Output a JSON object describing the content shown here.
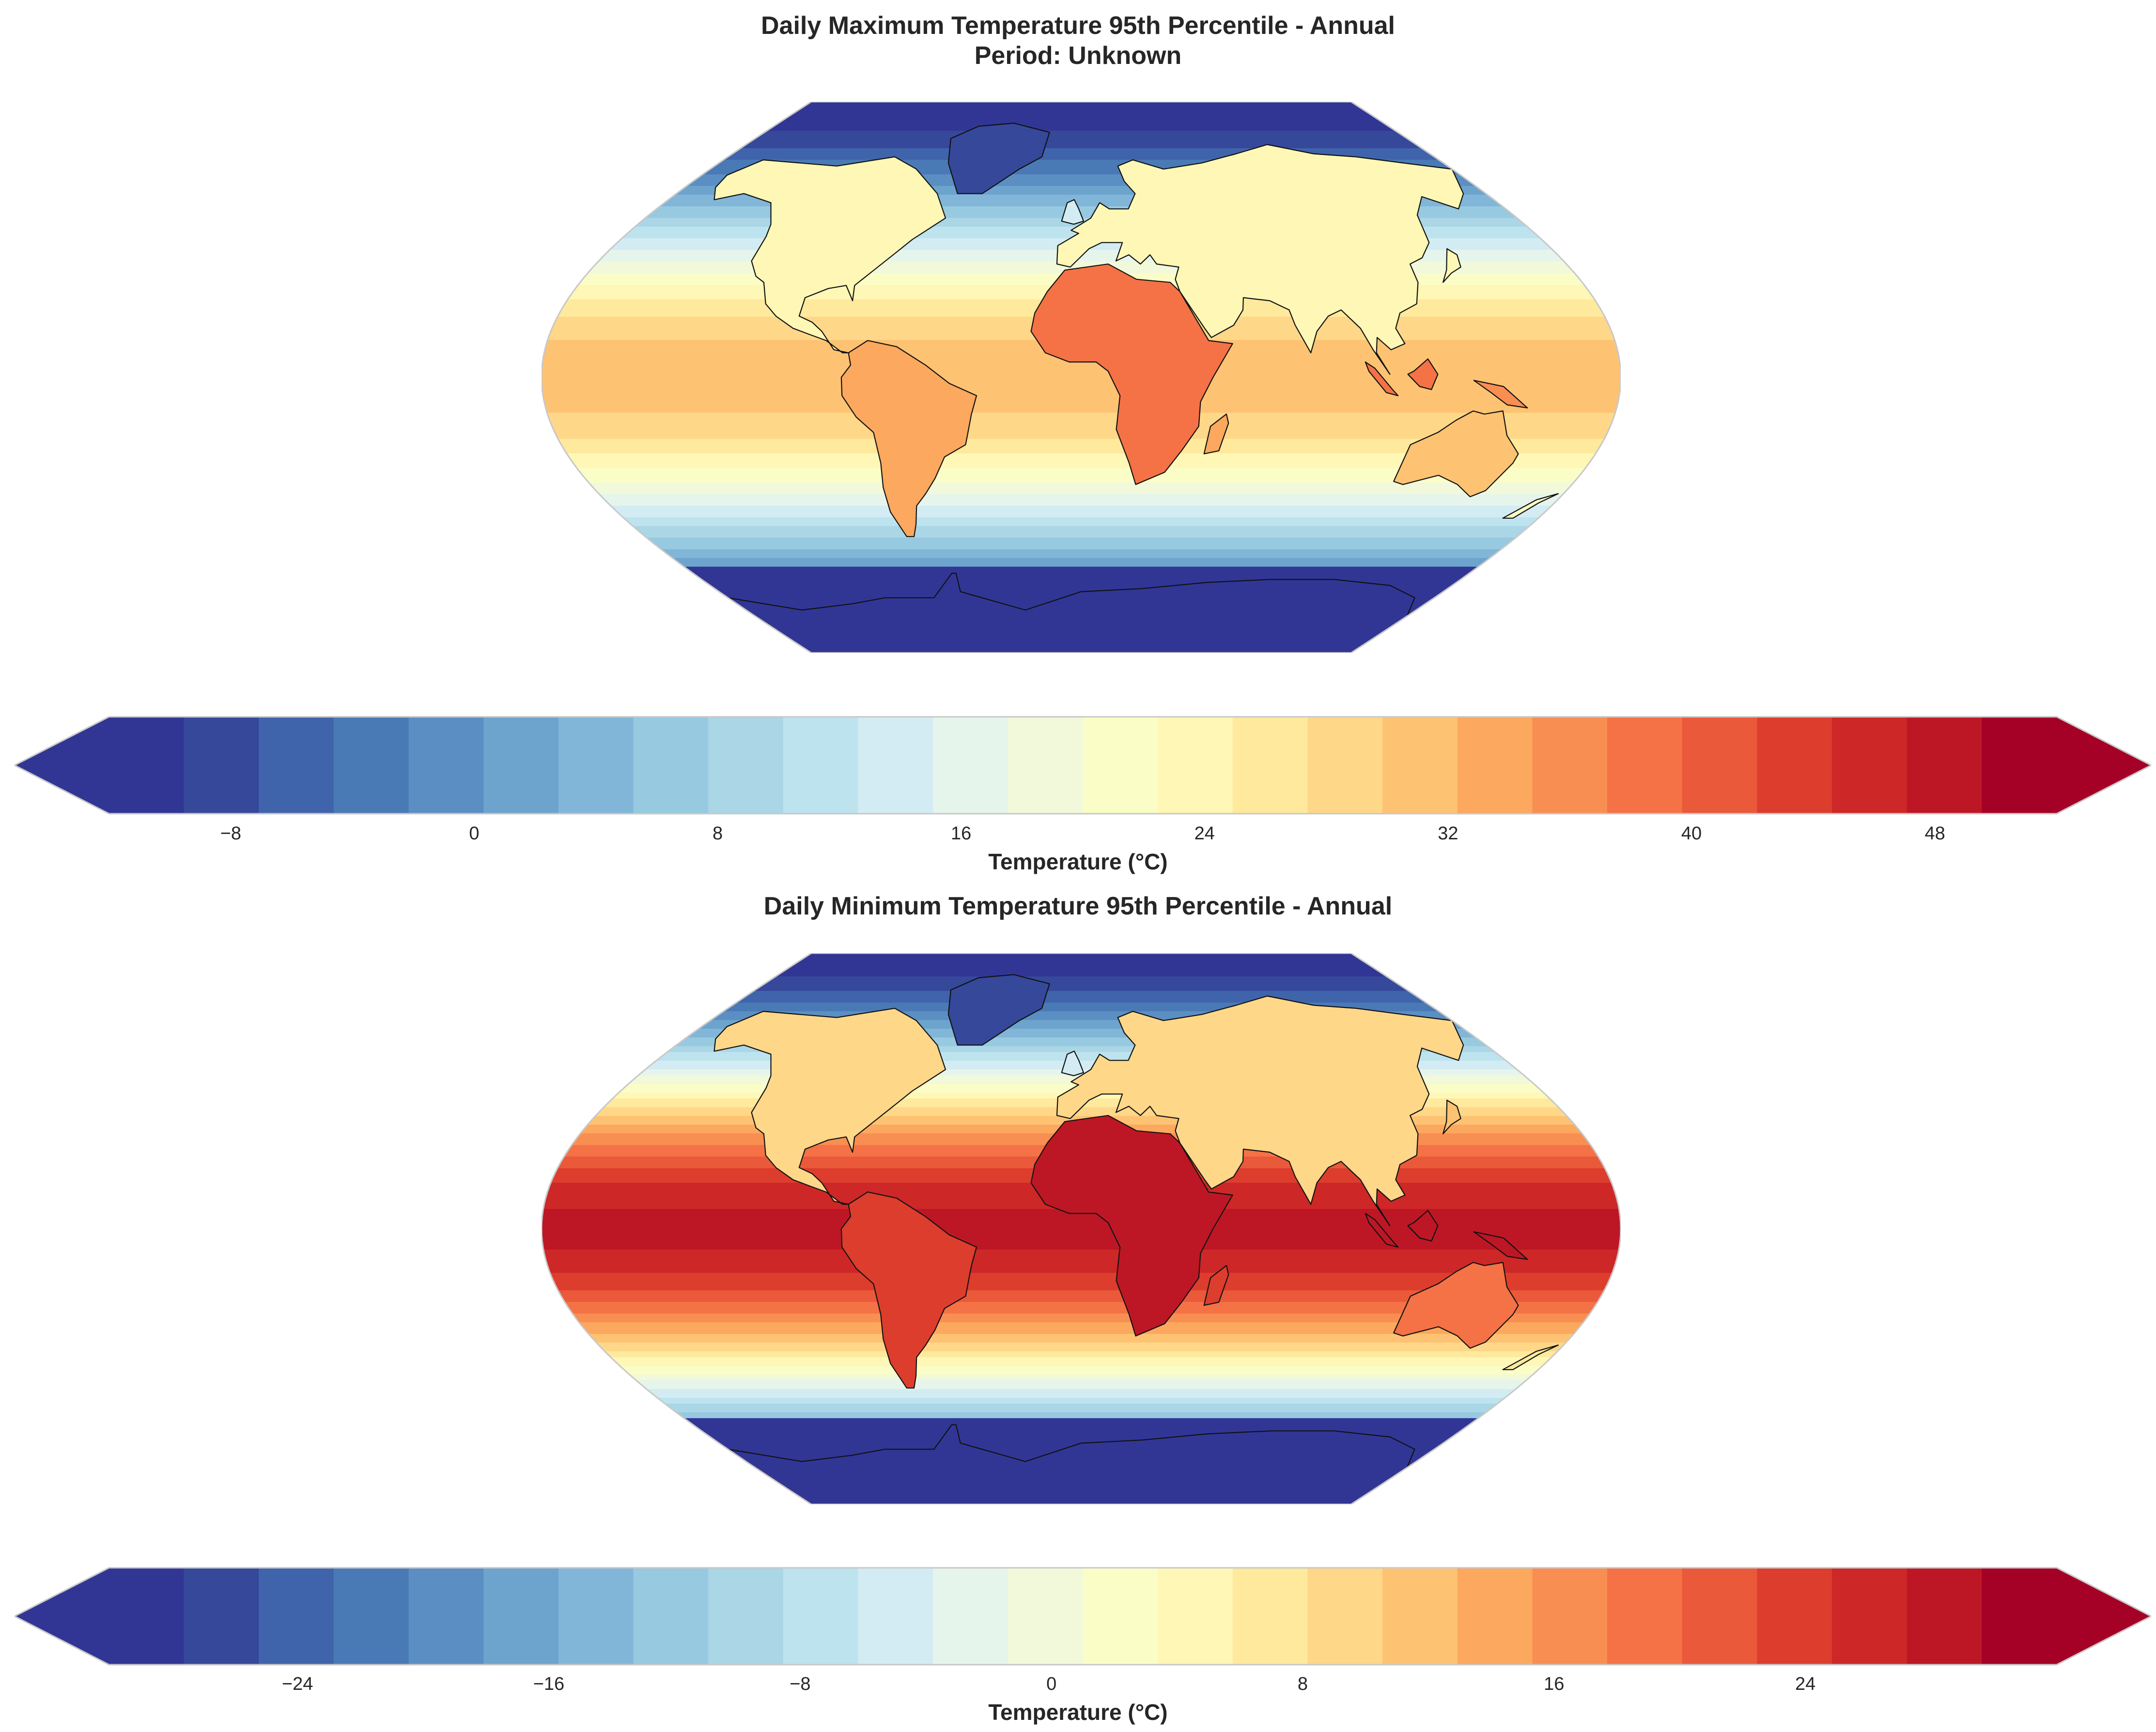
{
  "panels": [
    {
      "title_line1": "Daily Maximum Temperature 95th Percentile - Annual",
      "title_line2": "Period: Unknown",
      "colorbar": {
        "label": "Temperature (°C)",
        "ticks": [
          "−8",
          "0",
          "8",
          "16",
          "24",
          "32",
          "40",
          "48"
        ],
        "tick_values": [
          -8,
          0,
          8,
          16,
          24,
          32,
          40,
          48
        ],
        "range": [
          -12,
          50
        ],
        "step": 2
      },
      "field": {
        "equator_value": 30,
        "pole_value": -12,
        "land_boost": 6
      }
    },
    {
      "title_line1": "Daily Minimum Temperature 95th Percentile - Annual",
      "colorbar": {
        "label": "Temperature (°C)",
        "ticks": [
          "−24",
          "−16",
          "−8",
          "0",
          "8",
          "16",
          "24"
        ],
        "tick_values": [
          -24,
          -16,
          -8,
          0,
          8,
          16,
          24
        ],
        "range": [
          -30,
          30
        ],
        "step": 2
      },
      "field": {
        "equator_value": 26,
        "pole_value": -30,
        "land_boost": 0
      }
    }
  ],
  "colormap": {
    "name": "RdYlBu_r",
    "colors": [
      "#313695",
      "#36489a",
      "#4064ab",
      "#4a7ab6",
      "#5b8fc3",
      "#6da4cd",
      "#82b6d8",
      "#97c9e0",
      "#aad6e6",
      "#bde3ee",
      "#d3ecf3",
      "#e6f5ec",
      "#f1f9da",
      "#fbfdc7",
      "#fff7b5",
      "#fee99d",
      "#fed789",
      "#fdc373",
      "#fca85e",
      "#f98e52",
      "#f47245",
      "#e9593a",
      "#dd3d2d",
      "#cd2727",
      "#bd1726",
      "#a50026"
    ]
  }
}
